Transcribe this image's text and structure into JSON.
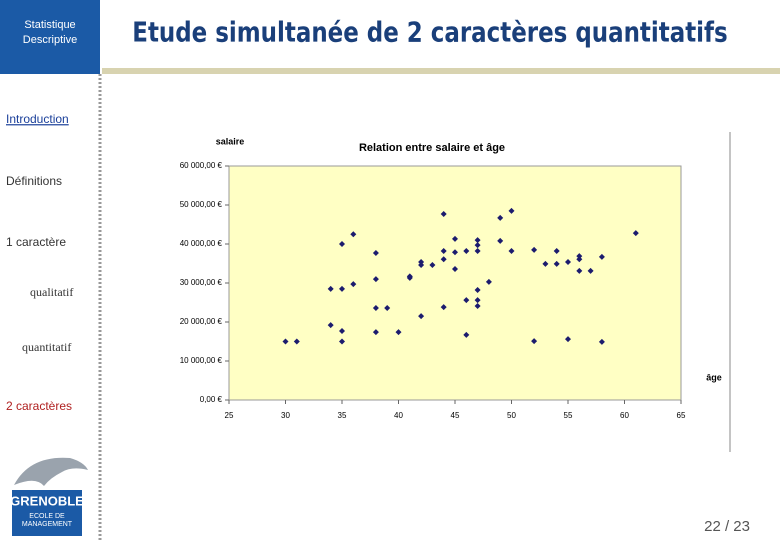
{
  "sidebar": {
    "header": "Statistique Descriptive",
    "nav": [
      "Introduction",
      "Définitions",
      "1 caractère",
      "qualitatif",
      "quantitatif",
      "2 caractères"
    ],
    "logo": {
      "name": "GRENOBLE",
      "subtitle": "ECOLE DE MANAGEMENT"
    }
  },
  "title": "Etude simultanée de 2 caractères quantitatifs",
  "page_number": "22 / 23",
  "chart_data": {
    "type": "scatter",
    "title": "Relation entre salaire et âge",
    "y_label": "salaire",
    "x_label": "âge",
    "color": "#1c1c6e",
    "x": [
      30,
      31,
      34,
      34,
      35,
      35,
      35,
      35,
      36,
      36,
      38,
      38,
      38,
      38,
      39,
      40,
      41,
      41,
      42,
      42,
      42,
      43,
      44,
      44,
      44,
      44,
      45,
      45,
      45,
      46,
      46,
      46,
      47,
      47,
      47,
      47,
      47,
      47,
      48,
      49,
      49,
      50,
      50,
      52,
      52,
      53,
      54,
      54,
      55,
      55,
      56,
      56,
      56,
      57,
      58,
      58,
      61
    ],
    "values": [
      15000,
      15000,
      19200,
      28500,
      28500,
      17700,
      15000,
      40000,
      42500,
      29700,
      37700,
      31000,
      23600,
      17400,
      23600,
      17400,
      31300,
      31700,
      35400,
      34600,
      21500,
      34600,
      47700,
      38200,
      36100,
      23800,
      41300,
      37900,
      33600,
      38200,
      25600,
      16700,
      41000,
      39700,
      38200,
      28200,
      25600,
      24100,
      30300,
      46700,
      40800,
      48500,
      38200,
      38500,
      15100,
      34900,
      38200,
      34900,
      35400,
      15600,
      36900,
      36100,
      33100,
      33100,
      36700,
      14900,
      42800
    ],
    "xlim": [
      25,
      65
    ],
    "xticks": [
      25,
      30,
      35,
      40,
      45,
      50,
      55,
      60,
      65
    ],
    "ylim": [
      0,
      60000
    ],
    "yticks": [
      {
        "value": 0,
        "label": "0,00 €"
      },
      {
        "value": 10000,
        "label": "10 000,00 €"
      },
      {
        "value": 20000,
        "label": "20 000,00 €"
      },
      {
        "value": 30000,
        "label": "30 000,00 €"
      },
      {
        "value": 40000,
        "label": "40 000,00 €"
      },
      {
        "value": 50000,
        "label": "50 000,00 €"
      },
      {
        "value": 60000,
        "label": "60 000,00 €"
      }
    ]
  }
}
